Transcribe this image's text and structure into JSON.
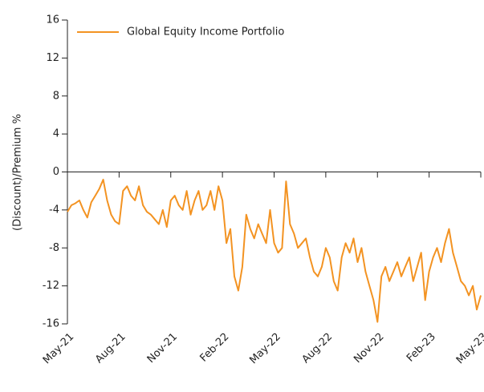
{
  "chart_data": {
    "type": "line",
    "categories": [
      "May-21",
      null,
      null,
      null,
      null,
      null,
      null,
      null,
      null,
      null,
      null,
      null,
      null,
      "Aug-21",
      null,
      null,
      null,
      null,
      null,
      null,
      null,
      null,
      null,
      null,
      null,
      null,
      "Nov-21",
      null,
      null,
      null,
      null,
      null,
      null,
      null,
      null,
      null,
      null,
      null,
      null,
      "Feb-22",
      null,
      null,
      null,
      null,
      null,
      null,
      null,
      null,
      null,
      null,
      null,
      null,
      "May-22",
      null,
      null,
      null,
      null,
      null,
      null,
      null,
      null,
      null,
      null,
      null,
      null,
      "Aug-22",
      null,
      null,
      null,
      null,
      null,
      null,
      null,
      null,
      null,
      null,
      null,
      null,
      "Nov-22",
      null,
      null,
      null,
      null,
      null,
      null,
      null,
      null,
      null,
      null,
      null,
      null,
      "Feb-23",
      null,
      null,
      null,
      null,
      null,
      null,
      null,
      null,
      null,
      null,
      null,
      null,
      "May-23"
    ],
    "series": [
      {
        "name": "Global Equity Income Portfolio",
        "color": "#f39322",
        "values": [
          -4.2,
          -3.5,
          -3.3,
          -3.0,
          -4.0,
          -4.8,
          -3.2,
          -2.5,
          -1.8,
          -0.8,
          -3.0,
          -4.5,
          -5.2,
          -5.5,
          -2.0,
          -1.5,
          -2.5,
          -3.0,
          -1.5,
          -3.5,
          -4.2,
          -4.5,
          -5.0,
          -5.5,
          -4.0,
          -5.8,
          -3.0,
          -2.5,
          -3.5,
          -4.0,
          -2.0,
          -4.5,
          -3.0,
          -2.0,
          -4.0,
          -3.5,
          -2.0,
          -4.0,
          -1.5,
          -3.0,
          -7.5,
          -6.0,
          -11.0,
          -12.5,
          -10.0,
          -4.5,
          -6.0,
          -7.0,
          -5.5,
          -6.5,
          -7.5,
          -4.0,
          -7.5,
          -8.5,
          -8.0,
          -1.0,
          -5.5,
          -6.5,
          -8.0,
          -7.5,
          -7.0,
          -9.0,
          -10.5,
          -11.0,
          -10.0,
          -8.0,
          -9.0,
          -11.5,
          -12.5,
          -9.0,
          -7.5,
          -8.5,
          -7.0,
          -9.5,
          -8.0,
          -10.5,
          -12.0,
          -13.5,
          -15.8,
          -11.0,
          -10.0,
          -11.5,
          -10.5,
          -9.5,
          -11.0,
          -10.0,
          -9.0,
          -11.5,
          -10.0,
          -8.5,
          -13.5,
          -10.5,
          -9.0,
          -8.0,
          -9.5,
          -7.5,
          -6.0,
          -8.5,
          -10.0,
          -11.5,
          -12.0,
          -13.0,
          -12.0,
          -14.5,
          -13.0
        ]
      }
    ],
    "y_label": "(Discount)/Premium %",
    "ylim": [
      -16,
      16
    ],
    "yticks": [
      -16,
      -12,
      -8,
      -4,
      0,
      4,
      8,
      12,
      16
    ],
    "legend": "top-left"
  }
}
